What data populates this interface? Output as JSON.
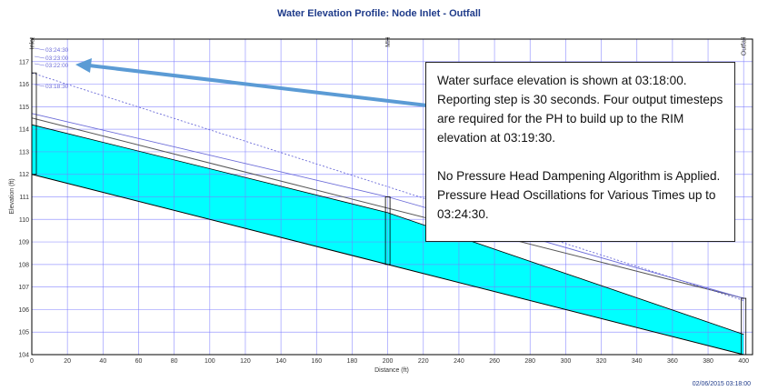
{
  "colors": {
    "title": "#1f3b8a",
    "water_fill": "#00ffff",
    "grid": "#7b7bff",
    "crown_line": "#555555",
    "hgl_line": "#6b6bd8",
    "arrow": "#5b9bd5",
    "node_label": "#333333"
  },
  "chart_data": {
    "type": "area",
    "title": "Water Elevation Profile:  Node Inlet - Outfall",
    "xlabel": "Distance (ft)",
    "ylabel": "Elevation (ft)",
    "xlim": [
      0,
      405
    ],
    "ylim": [
      104,
      118
    ],
    "x_ticks": [
      0,
      20,
      40,
      60,
      80,
      100,
      120,
      140,
      160,
      180,
      200,
      220,
      240,
      260,
      280,
      300,
      320,
      340,
      360,
      380,
      400
    ],
    "y_ticks": [
      104,
      105,
      106,
      107,
      108,
      109,
      110,
      111,
      112,
      113,
      114,
      115,
      116,
      117
    ],
    "grid": true,
    "nodes": [
      {
        "name": "Inlet",
        "x": 0,
        "invert": 112.0,
        "rim": 116.5
      },
      {
        "name": "MH",
        "x": 200,
        "invert": 108.0,
        "rim": 111.0
      },
      {
        "name": "Outfall",
        "x": 400,
        "invert": 104.0,
        "rim": 106.5
      }
    ],
    "pipe": {
      "invert": [
        [
          0,
          112.0
        ],
        [
          400,
          104.0
        ]
      ],
      "crown": [
        [
          0,
          114.5
        ],
        [
          400,
          106.5
        ]
      ]
    },
    "water_surface": {
      "time": "03:18:00",
      "points": [
        [
          0,
          114.2
        ],
        [
          200,
          110.3
        ],
        [
          400,
          104.9
        ]
      ]
    },
    "hgl_lines": [
      {
        "time": "03:22:00",
        "points": [
          [
            0,
            116.5
          ],
          [
            400,
            106.4
          ]
        ],
        "style": "dotted"
      },
      {
        "time": "03:18:30",
        "points": [
          [
            0,
            114.7
          ],
          [
            200,
            111.0
          ],
          [
            400,
            106.5
          ]
        ],
        "style": "solid"
      }
    ],
    "time_labels": [
      "03:24:30",
      "03:23:00",
      "03:22:00",
      "03:18:30"
    ],
    "footer_timestamp": "02/06/2015  03:18:00"
  },
  "annotation": {
    "paragraph1": "Water surface elevation is shown at 03:18:00. Reporting step is 30 seconds.  Four output timesteps are required for the PH to build up to the RIM elevation at 03:19:30.",
    "paragraph2": "No Pressure Head Dampening Algorithm is Applied. Pressure Head Oscillations for Various Times up to 03:24:30."
  }
}
